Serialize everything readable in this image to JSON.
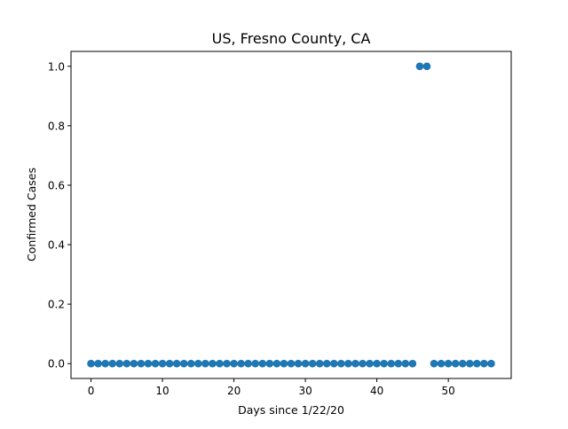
{
  "chart_data": {
    "type": "scatter",
    "title": "US, Fresno County, CA",
    "xlabel": "Days since 1/22/20",
    "ylabel": "Confirmed Cases",
    "xlim": [
      -2.8,
      58.8
    ],
    "ylim": [
      -0.05,
      1.05
    ],
    "xticks": [
      0,
      10,
      20,
      30,
      40,
      50
    ],
    "xtick_labels": [
      "0",
      "10",
      "20",
      "30",
      "40",
      "50"
    ],
    "yticks": [
      0.0,
      0.2,
      0.4,
      0.6,
      0.8,
      1.0
    ],
    "ytick_labels": [
      "0.0",
      "0.2",
      "0.4",
      "0.6",
      "0.8",
      "1.0"
    ],
    "grid": false,
    "marker_color": "#1f77b4",
    "x": [
      0,
      1,
      2,
      3,
      4,
      5,
      6,
      7,
      8,
      9,
      10,
      11,
      12,
      13,
      14,
      15,
      16,
      17,
      18,
      19,
      20,
      21,
      22,
      23,
      24,
      25,
      26,
      27,
      28,
      29,
      30,
      31,
      32,
      33,
      34,
      35,
      36,
      37,
      38,
      39,
      40,
      41,
      42,
      43,
      44,
      45,
      46,
      47,
      48,
      49,
      50,
      51,
      52,
      53,
      54,
      55,
      56
    ],
    "y": [
      0,
      0,
      0,
      0,
      0,
      0,
      0,
      0,
      0,
      0,
      0,
      0,
      0,
      0,
      0,
      0,
      0,
      0,
      0,
      0,
      0,
      0,
      0,
      0,
      0,
      0,
      0,
      0,
      0,
      0,
      0,
      0,
      0,
      0,
      0,
      0,
      0,
      0,
      0,
      0,
      0,
      0,
      0,
      0,
      0,
      0,
      1,
      1,
      0,
      0,
      0,
      0,
      0,
      0,
      0,
      0,
      0
    ]
  }
}
